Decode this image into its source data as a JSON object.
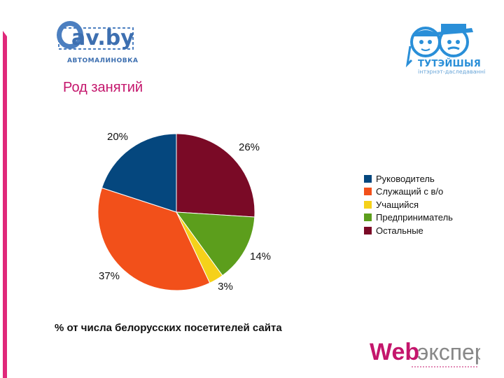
{
  "slide": {
    "title": "Род занятий",
    "footnote": "% от числа белорусских посетителей сайта"
  },
  "logos": {
    "avby": {
      "text": "av.by",
      "subtitle": "АВТОМАЛИНОВКА",
      "color": "#3d6fb0"
    },
    "tuteyshyia": {
      "name": "ТУТЭЙШЫЯ",
      "subtitle": "інтэрнэт-даследаванні",
      "color": "#2a8fd8"
    },
    "webexpert": {
      "part1": "Web",
      "part2": "эксперт",
      "accent": "#c4166c",
      "text_color": "#888888"
    }
  },
  "colors": {
    "title": "#c4166c",
    "accent_bar": "#e0287a"
  },
  "chart_data": {
    "type": "pie",
    "title": "",
    "unit": "%",
    "slices": [
      {
        "name": "Остальные",
        "value": 26,
        "label": "26%",
        "color": "#7a0a26"
      },
      {
        "name": "Предприниматель",
        "value": 14,
        "label": "14%",
        "color": "#5c9e1c"
      },
      {
        "name": "Учащийся",
        "value": 3,
        "label": "3%",
        "color": "#f5d11a"
      },
      {
        "name": "Служащий с в/о",
        "value": 37,
        "label": "37%",
        "color": "#f2501a"
      },
      {
        "name": "Руководитель",
        "value": 20,
        "label": "20%",
        "color": "#05477e"
      }
    ],
    "legend": {
      "position": "right",
      "entries": [
        {
          "label": "Руководитель",
          "color": "#05477e"
        },
        {
          "label": "Служащий с в/о",
          "color": "#f2501a"
        },
        {
          "label": "Учащийся",
          "color": "#f5d11a"
        },
        {
          "label": "Предприниматель",
          "color": "#5c9e1c"
        },
        {
          "label": "Остальные",
          "color": "#7a0a26"
        }
      ]
    }
  }
}
